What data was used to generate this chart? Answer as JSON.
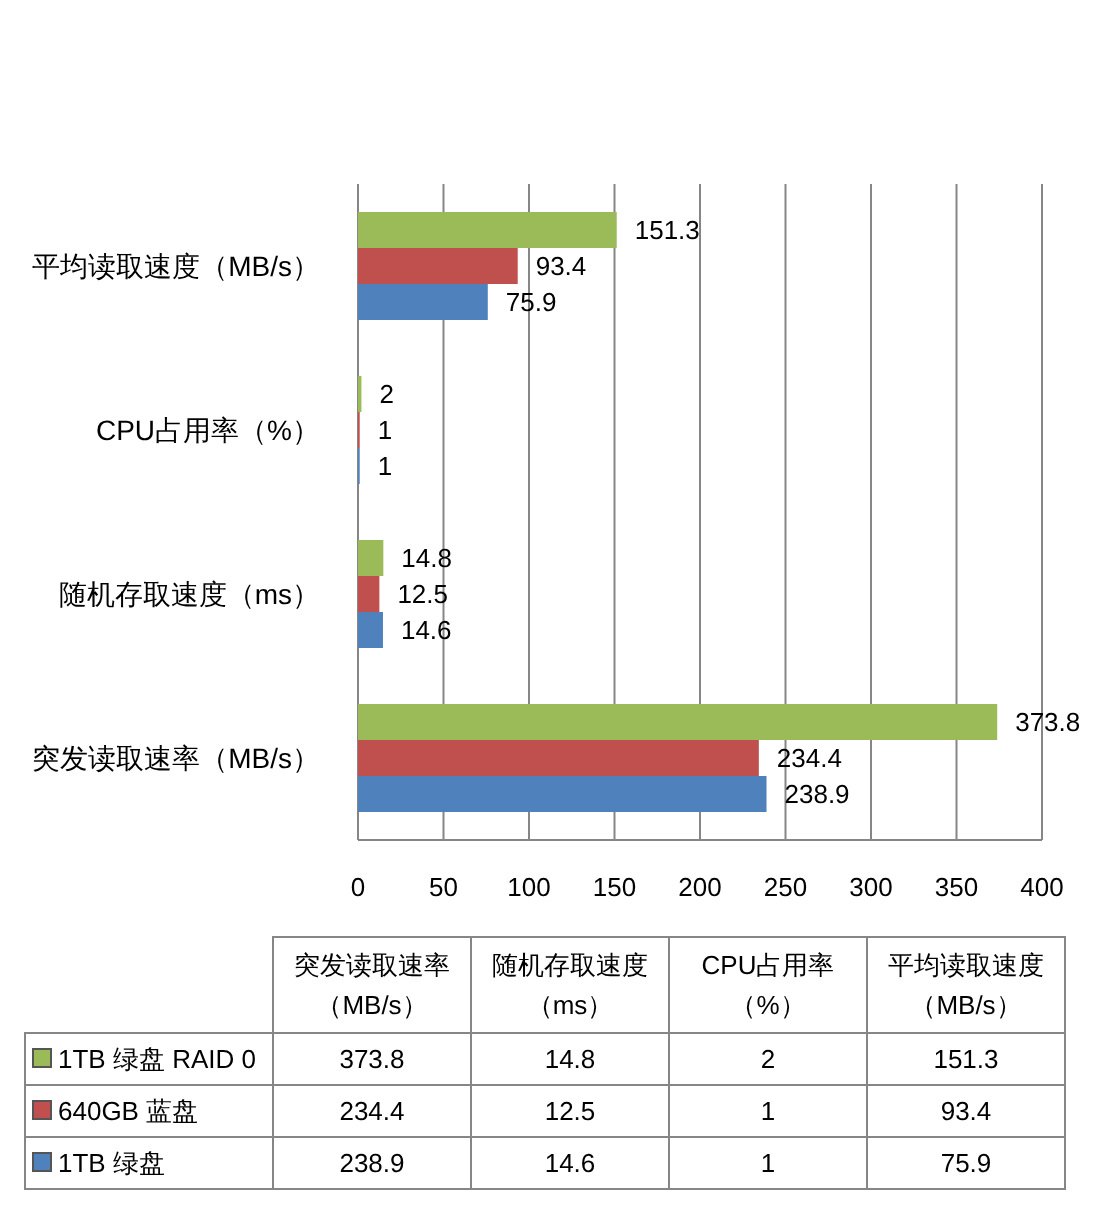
{
  "chart_data": [
    {
      "type": "bar",
      "orientation": "horizontal",
      "categories": [
        "平均读取速度（MB/s）",
        "CPU占用率（%）",
        "随机存取速度（ms）",
        "突发读取速率（MB/s）"
      ],
      "series": [
        {
          "color": "#9bbb59",
          "values": [
            151.3,
            2,
            14.8,
            373.8
          ]
        },
        {
          "color": "#c0504d",
          "values": [
            93.4,
            1,
            12.5,
            234.4
          ]
        },
        {
          "color": "#4f81bd",
          "values": [
            75.9,
            1,
            14.6,
            238.9
          ]
        }
      ],
      "xlim": [
        0,
        400
      ],
      "xticks": [
        0,
        50,
        100,
        150,
        200,
        250,
        300,
        350,
        400
      ],
      "grid": "x",
      "data_labels": true
    },
    {
      "type": "other",
      "categories": [
        "突发读取速率（MB/s）",
        "随机存取速度（ms）",
        "CPU占用率（%）",
        "平均读取速度（MB/s）"
      ],
      "series": [
        {
          "name": "1TB 绿盘 RAID 0",
          "color": "#9bbb59",
          "values": [
            373.8,
            14.8,
            2,
            151.3
          ]
        },
        {
          "name": "640GB 蓝盘",
          "color": "#c0504d",
          "values": [
            234.4,
            12.5,
            1,
            93.4
          ]
        },
        {
          "name": "1TB 绿盘",
          "color": "#4f81bd",
          "values": [
            238.9,
            14.6,
            1,
            75.9
          ]
        }
      ],
      "data_labels": true
    }
  ]
}
